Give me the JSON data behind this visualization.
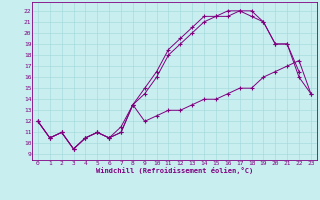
{
  "xlabel": "Windchill (Refroidissement éolien,°C)",
  "bg_color": "#c8eef0",
  "line_color": "#800080",
  "grid_color": "#a0d8d8",
  "spine_color": "#800080",
  "xlim": [
    -0.5,
    23.5
  ],
  "ylim": [
    8.5,
    22.8
  ],
  "xticks": [
    0,
    1,
    2,
    3,
    4,
    5,
    6,
    7,
    8,
    9,
    10,
    11,
    12,
    13,
    14,
    15,
    16,
    17,
    18,
    19,
    20,
    21,
    22,
    23
  ],
  "yticks": [
    9,
    10,
    11,
    12,
    13,
    14,
    15,
    16,
    17,
    18,
    19,
    20,
    21,
    22
  ],
  "line1_x": [
    0,
    1,
    2,
    3,
    4,
    5,
    6,
    7,
    8,
    9,
    10,
    11,
    12,
    13,
    14,
    15,
    16,
    17,
    18,
    19,
    20,
    21,
    22,
    23
  ],
  "line1_y": [
    12,
    10.5,
    11,
    9.5,
    10.5,
    11,
    10.5,
    11,
    13.5,
    12,
    12.5,
    13,
    13,
    13.5,
    14,
    14,
    14.5,
    15,
    15,
    16,
    16.5,
    17,
    17.5,
    14.5
  ],
  "line2_x": [
    0,
    1,
    2,
    3,
    4,
    5,
    6,
    7,
    8,
    9,
    10,
    11,
    12,
    13,
    14,
    15,
    16,
    17,
    18,
    19,
    20,
    21,
    22
  ],
  "line2_y": [
    12,
    10.5,
    11,
    9.5,
    10.5,
    11,
    10.5,
    11.5,
    13.5,
    15,
    16.5,
    18.5,
    19.5,
    20.5,
    21.5,
    21.5,
    22,
    22,
    21.5,
    21,
    19,
    19,
    16.5
  ],
  "line3_x": [
    0,
    1,
    2,
    3,
    4,
    5,
    6,
    7,
    8,
    9,
    10,
    11,
    12,
    13,
    14,
    15,
    16,
    17,
    18,
    19,
    20,
    21,
    22,
    23
  ],
  "line3_y": [
    12,
    10.5,
    11,
    9.5,
    10.5,
    11,
    10.5,
    11,
    13.5,
    14.5,
    16,
    18,
    19,
    20,
    21,
    21.5,
    21.5,
    22,
    22,
    21,
    19,
    19,
    16,
    14.5
  ]
}
